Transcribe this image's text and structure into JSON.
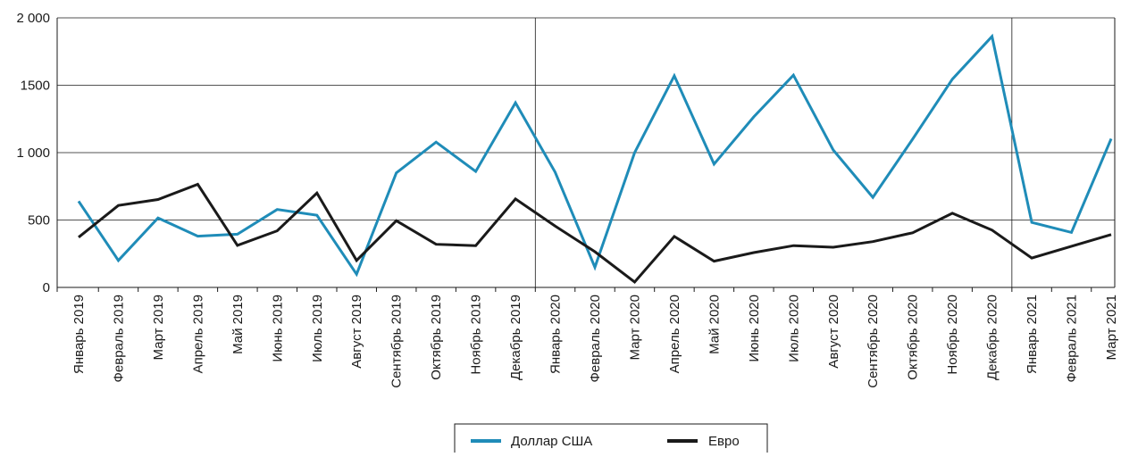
{
  "chart_data": {
    "type": "line",
    "title": "",
    "xlabel": "",
    "ylabel": "",
    "ylim": [
      0,
      2000
    ],
    "yticks": [
      0,
      500,
      1000,
      1500,
      2000
    ],
    "ytick_labels": [
      "0",
      "500",
      "1 000",
      "1500",
      "2 000"
    ],
    "grid": true,
    "year_separators_after": [
      "Декабрь 2019",
      "Декабрь 2020"
    ],
    "legend_position": "bottom-center",
    "categories": [
      "Январь 2019",
      "Февраль 2019",
      "Март 2019",
      "Апрель 2019",
      "Май 2019",
      "Июнь 2019",
      "Июль 2019",
      "Август 2019",
      "Сентябрь 2019",
      "Октябрь 2019",
      "Ноябрь 2019",
      "Декабрь 2019",
      "Январь 2020",
      "Февраль 2020",
      "Март 2020",
      "Апрель 2020",
      "Май 2020",
      "Июнь 2020",
      "Июль 2020",
      "Август 2020",
      "Сентябрь 2020",
      "Октябрь 2020",
      "Ноябрь 2020",
      "Декабрь 2020",
      "Январь 2021",
      "Февраль 2021",
      "Март 2021"
    ],
    "series": [
      {
        "name": "Доллар США",
        "color": "#1f8cb8",
        "values": [
          640,
          200,
          515,
          380,
          395,
          578,
          535,
          98,
          850,
          1078,
          860,
          1370,
          855,
          150,
          1000,
          1570,
          915,
          1265,
          1575,
          1020,
          668,
          1100,
          1545,
          1862,
          482,
          408,
          1103
        ]
      },
      {
        "name": "Евро",
        "color": "#1a1a1a",
        "values": [
          372,
          608,
          652,
          765,
          312,
          420,
          700,
          200,
          495,
          320,
          310,
          656,
          455,
          265,
          40,
          378,
          195,
          258,
          310,
          298,
          340,
          405,
          550,
          425,
          218,
          305,
          392
        ]
      }
    ]
  }
}
